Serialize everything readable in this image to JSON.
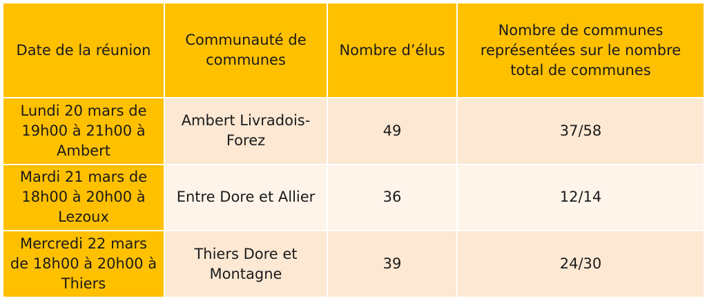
{
  "table": {
    "headers": [
      "Date de la réunion",
      "Communauté de communes",
      "Nombre d’élus",
      "Nombre de communes représentées sur le nombre total de communes"
    ],
    "rows": [
      {
        "date": "Lundi 20 mars de 19h00 à 21h00 à Ambert",
        "communaute": "Ambert Livradois-Forez",
        "elus": "49",
        "communes": "37/58"
      },
      {
        "date": "Mardi 21 mars de 18h00 à 20h00 à Lezoux",
        "communaute": "Entre Dore et Allier",
        "elus": "36",
        "communes": "12/14"
      },
      {
        "date": "Mercredi 22 mars de 18h00 à 20h00 à Thiers",
        "communaute": "Thiers Dore et Montagne",
        "elus": "39",
        "communes": "24/30"
      }
    ],
    "colors": {
      "header": "#ffc000",
      "row_dark": "#fce8d3",
      "row_light": "#fef4ea"
    }
  }
}
